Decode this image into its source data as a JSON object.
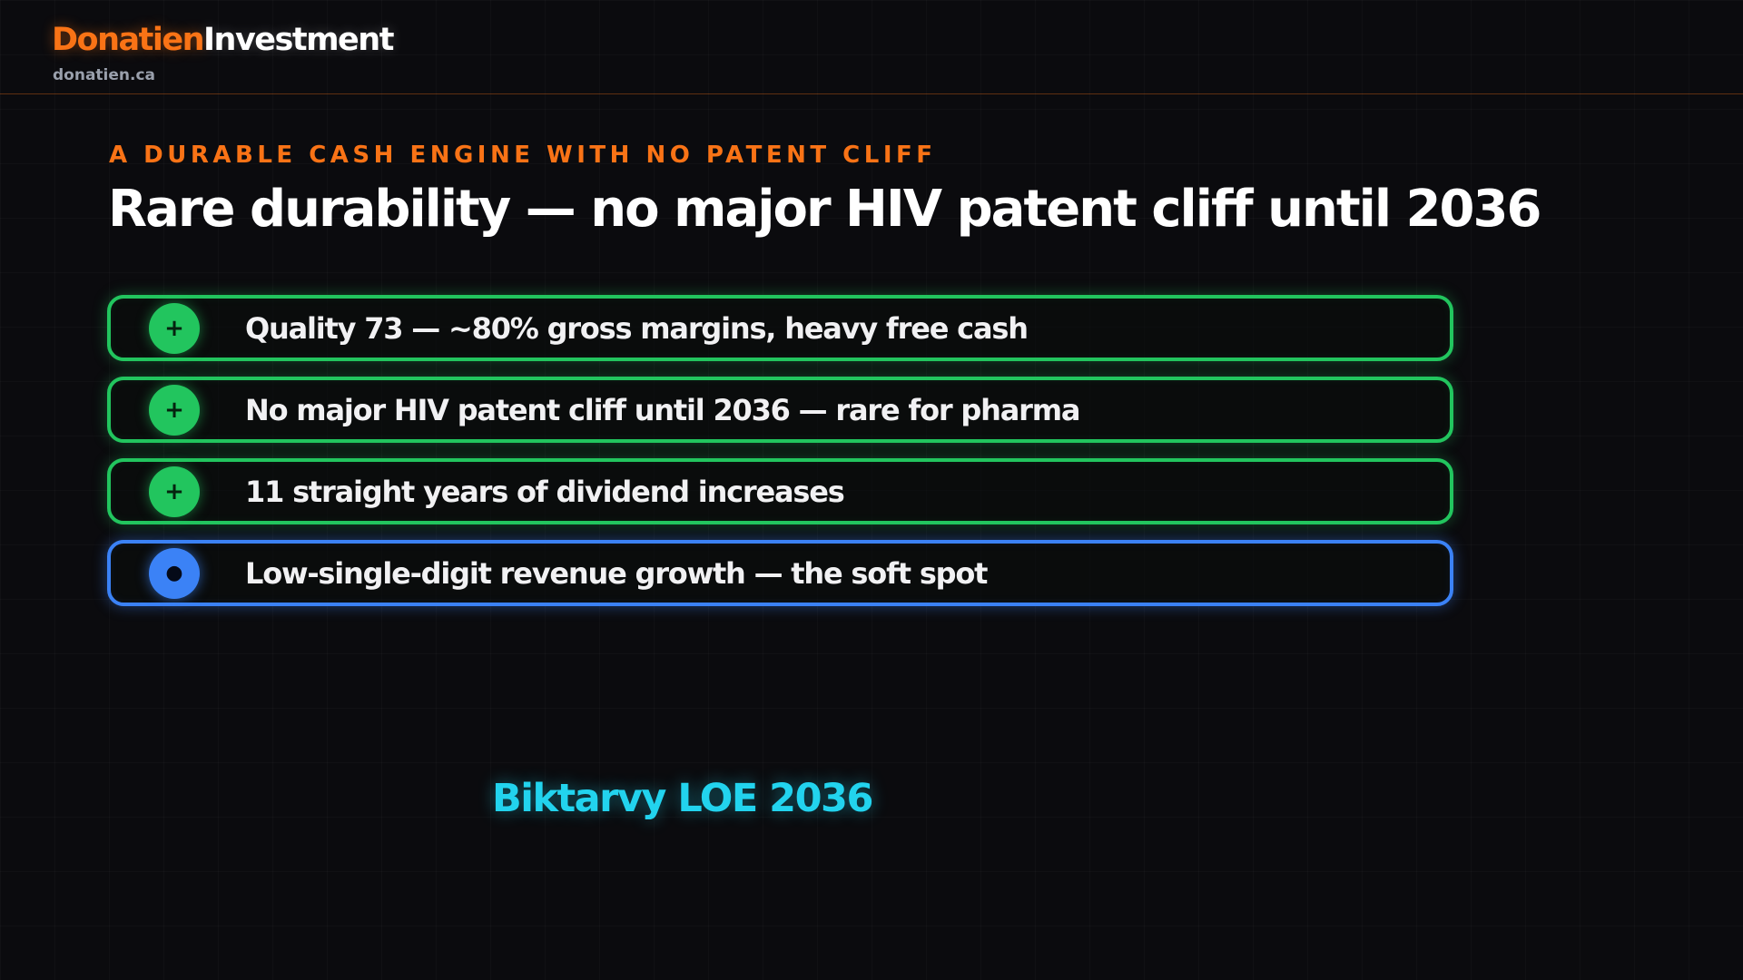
{
  "brand": {
    "name_part1": "Donatien",
    "name_part2": "Investment",
    "website": "donatien.ca",
    "accent_color": "#f97316"
  },
  "slide": {
    "eyebrow": "A DURABLE CASH ENGINE WITH NO PATENT CLIFF",
    "title": "Rare durability — no major HIV patent cliff until 2036",
    "points": [
      {
        "icon": "plus-icon",
        "symbol": "+",
        "status": "positive",
        "color": "#22c55e",
        "text": "Quality 73 — ~80% gross margins, heavy free cash"
      },
      {
        "icon": "plus-icon",
        "symbol": "+",
        "status": "positive",
        "color": "#22c55e",
        "text": "No major HIV patent cliff until 2036 — rare for pharma"
      },
      {
        "icon": "plus-icon",
        "symbol": "+",
        "status": "positive",
        "color": "#22c55e",
        "text": "11 straight years of dividend increases"
      },
      {
        "icon": "dot-icon",
        "symbol": "●",
        "status": "neutral",
        "color": "#3b82f6",
        "text": "Low-single-digit revenue growth — the soft spot"
      }
    ],
    "callout": "Biktarvy LOE 2036",
    "callout_color": "#22d3ee"
  }
}
